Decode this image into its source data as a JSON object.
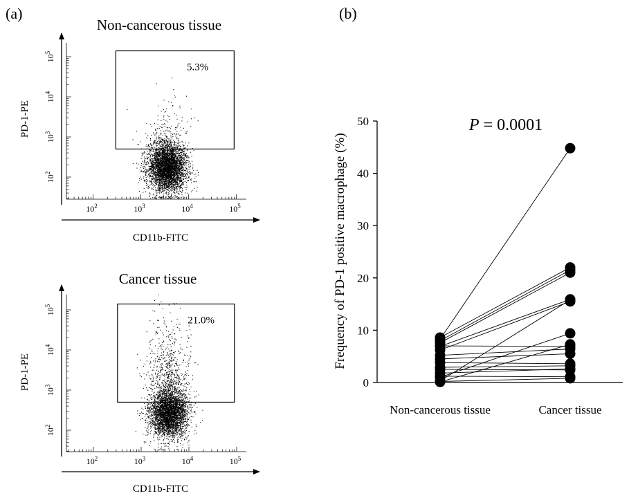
{
  "chart_data": [
    {
      "type": "scatter",
      "panel_label": "(a)",
      "title": "Non-cancerous tissue",
      "xlabel": "CD11b-FITC",
      "ylabel": "PD-1-PE",
      "x_scale": "log",
      "y_scale": "log",
      "x_ticks": [
        {
          "value": 100,
          "base": "10",
          "exp": "2"
        },
        {
          "value": 1000,
          "base": "10",
          "exp": "3"
        },
        {
          "value": 10000,
          "base": "10",
          "exp": "4"
        },
        {
          "value": 100000,
          "base": "10",
          "exp": "5"
        }
      ],
      "y_ticks": [
        {
          "value": 100,
          "base": "10",
          "exp": "2"
        },
        {
          "value": 1000,
          "base": "10",
          "exp": "3"
        },
        {
          "value": 10000,
          "base": "10",
          "exp": "4"
        },
        {
          "value": 100000,
          "base": "10",
          "exp": "5"
        }
      ],
      "gate": {
        "x_min": 300,
        "x_max": 90000,
        "y_min": 500,
        "y_max": 140000,
        "label": "5.3%"
      },
      "population": {
        "center_x": 3500,
        "center_y": 180,
        "positive_fraction": 0.053
      }
    },
    {
      "type": "scatter",
      "title": "Cancer tissue",
      "xlabel": "CD11b-FITC",
      "ylabel": "PD-1-PE",
      "x_scale": "log",
      "y_scale": "log",
      "x_ticks": [
        {
          "value": 100,
          "base": "10",
          "exp": "2"
        },
        {
          "value": 1000,
          "base": "10",
          "exp": "3"
        },
        {
          "value": 10000,
          "base": "10",
          "exp": "4"
        },
        {
          "value": 100000,
          "base": "10",
          "exp": "5"
        }
      ],
      "y_ticks": [
        {
          "value": 100,
          "base": "10",
          "exp": "2"
        },
        {
          "value": 1000,
          "base": "10",
          "exp": "3"
        },
        {
          "value": 10000,
          "base": "10",
          "exp": "4"
        },
        {
          "value": 100000,
          "base": "10",
          "exp": "5"
        }
      ],
      "gate": {
        "x_min": 320,
        "x_max": 90000,
        "y_min": 500,
        "y_max": 140000,
        "label": "21.0%"
      },
      "population": {
        "center_x": 3800,
        "center_y": 280,
        "positive_fraction": 0.21
      }
    },
    {
      "type": "line",
      "panel_label": "(b)",
      "ylabel": "Frequency of PD-1 positive macrophage (%)",
      "categories": [
        "Non-cancerous tissue",
        "Cancer tissue"
      ],
      "ylim": [
        0,
        50
      ],
      "yticks": [
        0,
        10,
        20,
        30,
        40,
        50
      ],
      "annotation": {
        "italic": "P",
        "text": " = 0.0001"
      },
      "pairs": [
        [
          8.3,
          44.8
        ],
        [
          8.6,
          22.0
        ],
        [
          8.0,
          21.5
        ],
        [
          7.6,
          21.0
        ],
        [
          6.9,
          15.9
        ],
        [
          6.2,
          15.5
        ],
        [
          0.3,
          15.8
        ],
        [
          1.0,
          9.4
        ],
        [
          0.1,
          7.3
        ],
        [
          7.0,
          6.9
        ],
        [
          5.2,
          6.4
        ],
        [
          4.5,
          5.5
        ],
        [
          3.8,
          3.6
        ],
        [
          2.9,
          3.2
        ],
        [
          1.8,
          2.6
        ],
        [
          2.5,
          2.4
        ],
        [
          1.2,
          1.1
        ],
        [
          0.2,
          0.8
        ]
      ]
    }
  ]
}
